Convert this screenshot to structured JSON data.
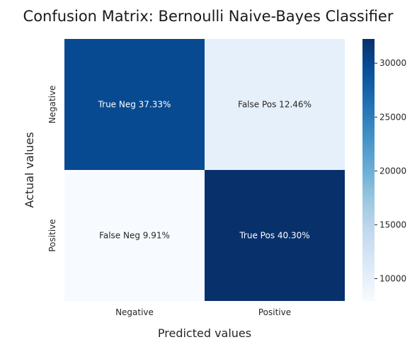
{
  "chart_data": {
    "type": "heatmap",
    "title": "Confusion Matrix: Bernoulli Naive-Bayes Classifier",
    "xlabel": "Predicted values",
    "ylabel": "Actual values",
    "x_categories": [
      "Negative",
      "Positive"
    ],
    "y_categories": [
      "Negative",
      "Positive"
    ],
    "values": [
      [
        29870,
        9970
      ],
      [
        7930,
        32250
      ]
    ],
    "annotations": [
      [
        "True Neg 37.33%",
        "False Pos 12.46%"
      ],
      [
        "False Neg 9.91%",
        "True Pos 40.30%"
      ]
    ],
    "colormap": "Blues",
    "colorbar": {
      "range": [
        7930,
        32250
      ],
      "ticks": [
        10000,
        15000,
        20000,
        25000,
        30000
      ]
    },
    "colors": {
      "low": "#f7fbff",
      "high": "#08306b",
      "text_light": "#ffffff",
      "text_dark": "#262626"
    }
  }
}
